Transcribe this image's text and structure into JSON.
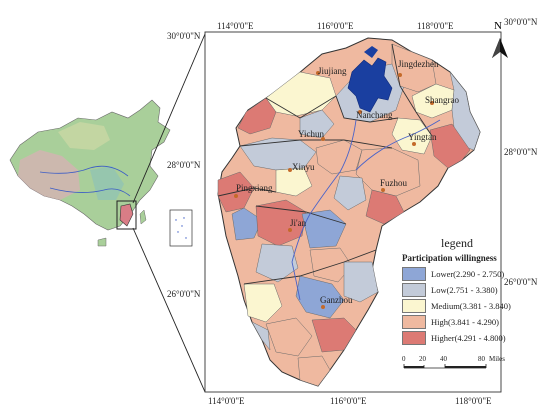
{
  "coords": {
    "top": [
      "114°0'0\"E",
      "116°0'0\"E",
      "118°0'0\"E"
    ],
    "bottom": [
      "114°0'0\"E",
      "116°0'0\"E",
      "118°0'0\"E"
    ],
    "left": [
      "30°0'0\"N",
      "28°0'0\"N",
      "26°0'0\"N"
    ],
    "right": [
      "30°0'0\"N",
      "28°0'0\"N",
      "26°0'0\"N"
    ]
  },
  "north": "N",
  "cities": [
    {
      "name": "Jiujiang"
    },
    {
      "name": "Jingdezhen"
    },
    {
      "name": "Shangrao"
    },
    {
      "name": "Nanchang"
    },
    {
      "name": "Yichun"
    },
    {
      "name": "Yingtan"
    },
    {
      "name": "Xinyu"
    },
    {
      "name": "Pingxiang"
    },
    {
      "name": "Fuzhou"
    },
    {
      "name": "Ji'an"
    },
    {
      "name": "Ganzhou"
    }
  ],
  "legend": {
    "title": "legend",
    "subtitle": "Participation willingness",
    "classes": [
      {
        "label": "Lower(2.290 - 2.750)",
        "color": "#8ea6d6"
      },
      {
        "label": "Low(2.751 - 3.380)",
        "color": "#c3cbd9"
      },
      {
        "label": "Medium(3.381 - 3.840)",
        "color": "#fbf6d0"
      },
      {
        "label": "High(3.841 - 4.290)",
        "color": "#efb9a0"
      },
      {
        "label": "Higher(4.291 - 4.800)",
        "color": "#dc7a74"
      }
    ]
  },
  "scale": {
    "ticks": [
      "0",
      "20",
      "40",
      "80"
    ],
    "unit": "Miles"
  },
  "colors": {
    "lake": "#1a3fa0",
    "county_border": "#555555",
    "river": "#4a63c9"
  }
}
